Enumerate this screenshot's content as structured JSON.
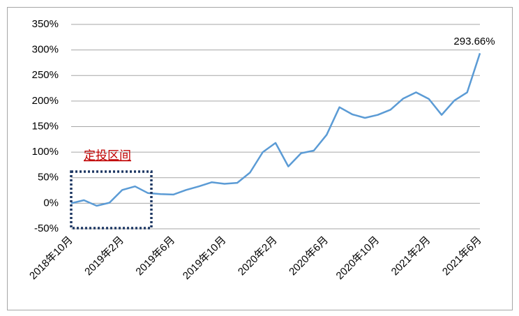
{
  "chart_data": {
    "type": "line",
    "categories": [
      "2018年10月",
      null,
      null,
      null,
      "2019年2月",
      null,
      null,
      null,
      "2019年6月",
      null,
      null,
      null,
      "2019年10月",
      null,
      null,
      null,
      "2020年2月",
      null,
      null,
      null,
      "2020年6月",
      null,
      null,
      null,
      "2020年10月",
      null,
      null,
      null,
      "2021年2月",
      null,
      null,
      null,
      "2021年6月"
    ],
    "values": [
      0,
      6,
      -5,
      1,
      26,
      33,
      20,
      18,
      17,
      26,
      33,
      41,
      38,
      40,
      60,
      100,
      118,
      72,
      98,
      103,
      134,
      188,
      174,
      167,
      173,
      183,
      205,
      217,
      204,
      173,
      201,
      217,
      293.66
    ],
    "value_labels": [
      null,
      null,
      null,
      null,
      null,
      null,
      null,
      null,
      null,
      null,
      null,
      null,
      null,
      null,
      null,
      null,
      null,
      null,
      null,
      null,
      null,
      null,
      null,
      null,
      null,
      null,
      null,
      null,
      null,
      null,
      null,
      null,
      "293.66%"
    ],
    "color": "#5b9bd5",
    "ylim": [
      -50,
      350
    ],
    "yticks": [
      {
        "value": -50,
        "label": "-50%"
      },
      {
        "value": 0,
        "label": "0%"
      },
      {
        "value": 50,
        "label": "50%"
      },
      {
        "value": 100,
        "label": "100%"
      },
      {
        "value": 150,
        "label": "150%"
      },
      {
        "value": 200,
        "label": "200%"
      },
      {
        "value": 250,
        "label": "250%"
      },
      {
        "value": 300,
        "label": "300%"
      },
      {
        "value": 350,
        "label": "350%"
      }
    ],
    "grid": true,
    "annotation": "定投区间"
  }
}
